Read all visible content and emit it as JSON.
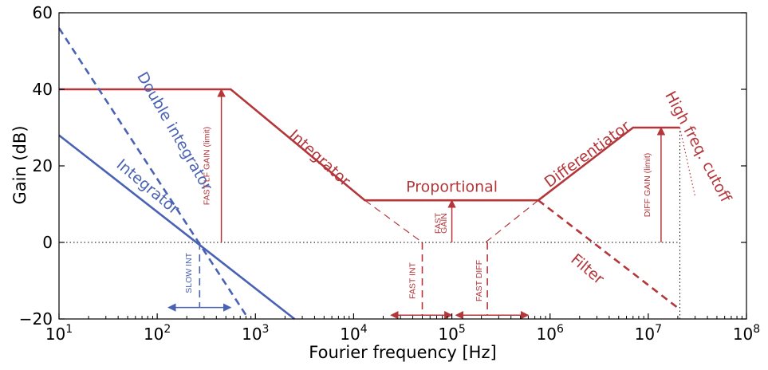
{
  "chart_data": {
    "type": "line",
    "xscale": "log",
    "xlim": [
      10,
      100000000
    ],
    "ylim": [
      -20,
      60
    ],
    "xlabel": "Fourier frequency  [Hz]",
    "ylabel": "Gain (dB)",
    "xticks": [
      {
        "value": 10,
        "base": "10",
        "exp": "1"
      },
      {
        "value": 100,
        "base": "10",
        "exp": "2"
      },
      {
        "value": 1000,
        "base": "10",
        "exp": "3"
      },
      {
        "value": 10000,
        "base": "10",
        "exp": "4"
      },
      {
        "value": 100000,
        "base": "10",
        "exp": "5"
      },
      {
        "value": 1000000,
        "base": "10",
        "exp": "6"
      },
      {
        "value": 10000000,
        "base": "10",
        "exp": "7"
      },
      {
        "value": 100000000,
        "base": "10",
        "exp": "8"
      }
    ],
    "yticks": [
      {
        "value": -20,
        "label": "−20"
      },
      {
        "value": 0,
        "label": "0"
      },
      {
        "value": 20,
        "label": "20"
      },
      {
        "value": 40,
        "label": "40"
      },
      {
        "value": 60,
        "label": "60"
      }
    ],
    "colors": {
      "blue": "#4a62b3",
      "red": "#b3363a",
      "axis": "#000000"
    },
    "series": [
      {
        "color": "red",
        "style": "solid",
        "width": 2.6,
        "points": [
          [
            10,
            40
          ],
          [
            560,
            40
          ],
          [
            13000,
            11
          ],
          [
            760000,
            11
          ],
          [
            7000000,
            30
          ],
          [
            21000000,
            30
          ]
        ]
      },
      {
        "color": "red",
        "style": "dashed",
        "width": 2.6,
        "points": [
          [
            760000,
            11
          ],
          [
            21000000,
            -17.5
          ]
        ]
      },
      {
        "color": "red",
        "style": "dotted",
        "width": 1.2,
        "points": [
          [
            21000000,
            30
          ],
          [
            30000000,
            12
          ]
        ]
      },
      {
        "color": "blue",
        "style": "solid",
        "width": 2.6,
        "points": [
          [
            10,
            28
          ],
          [
            2500,
            -20
          ]
        ]
      },
      {
        "color": "blue",
        "style": "dashed",
        "width": 2.6,
        "points": [
          [
            10,
            56
          ],
          [
            850,
            -20
          ]
        ]
      }
    ],
    "guides": [
      {
        "color": "red",
        "style": "dashed",
        "width": 1.2,
        "points": [
          [
            13000,
            11
          ],
          [
            50000,
            0
          ]
        ]
      },
      {
        "color": "red",
        "style": "dashed",
        "width": 1.2,
        "points": [
          [
            760000,
            11
          ],
          [
            220000,
            0
          ]
        ]
      },
      {
        "color": "red",
        "style": "dashed",
        "width": 1.6,
        "points": [
          [
            50000,
            0
          ],
          [
            50000,
            -19
          ]
        ]
      },
      {
        "color": "red",
        "style": "dashed",
        "width": 1.6,
        "points": [
          [
            230000,
            0
          ],
          [
            230000,
            -19
          ]
        ]
      },
      {
        "color": "blue",
        "style": "dashed",
        "width": 1.6,
        "points": [
          [
            270,
            0
          ],
          [
            270,
            -17
          ]
        ]
      },
      {
        "color": "black",
        "style": "dotted",
        "width": 1.0,
        "points": [
          [
            10,
            0
          ],
          [
            21000000,
            0
          ]
        ]
      },
      {
        "color": "black",
        "style": "dotted",
        "width": 1.0,
        "points": [
          [
            21000000,
            30
          ],
          [
            21000000,
            -20
          ]
        ]
      }
    ],
    "arrows": [
      {
        "color": "red",
        "from": [
          450,
          0
        ],
        "to": [
          450,
          40
        ]
      },
      {
        "color": "red",
        "from": [
          100000,
          0
        ],
        "to": [
          100000,
          11
        ]
      },
      {
        "color": "red",
        "from": [
          13500000,
          0
        ],
        "to": [
          13500000,
          30
        ]
      },
      {
        "color": "red",
        "from": [
          24000,
          -19
        ],
        "to": [
          100000,
          -19
        ],
        "double": true
      },
      {
        "color": "red",
        "from": [
          110000,
          -19
        ],
        "to": [
          600000,
          -19
        ],
        "double": true
      },
      {
        "color": "blue",
        "from": [
          130,
          -17
        ],
        "to": [
          560,
          -17
        ],
        "double": true
      }
    ],
    "annotations": [
      {
        "text": "Integrator",
        "x": 4500,
        "y": 22,
        "angle": 42,
        "color": "red",
        "class": "curve-label"
      },
      {
        "text": "Proportional",
        "x": 100000,
        "y": 14.5,
        "angle": 0,
        "color": "red",
        "class": "curve-label"
      },
      {
        "text": "Differentiator",
        "x": 2400000,
        "y": 23,
        "angle": -36,
        "color": "red",
        "class": "curve-label"
      },
      {
        "text": "High freq. cutoff",
        "x": 32000000,
        "y": 25,
        "angle": 62,
        "color": "red",
        "class": "curve-label"
      },
      {
        "text": "Filter",
        "x": 2400000,
        "y": -7,
        "angle": 40,
        "color": "red",
        "class": "curve-label"
      },
      {
        "text": "Double integrator",
        "x": 150,
        "y": 29,
        "angle": 60,
        "color": "blue",
        "class": "curve-label"
      },
      {
        "text": "Integrator",
        "x": 80,
        "y": 14.5,
        "angle": 40,
        "color": "blue",
        "class": "curve-label"
      },
      {
        "text": "FAST LF GAIN (limit)",
        "x": 320,
        "y": 20,
        "angle": -90,
        "color": "red",
        "class": "small-label"
      },
      {
        "text": "FAST",
        "x": 73000,
        "y": 5,
        "angle": -90,
        "color": "red",
        "class": "small-label"
      },
      {
        "text": "GAIN",
        "x": 84000,
        "y": 5,
        "angle": -90,
        "color": "red",
        "class": "small-label"
      },
      {
        "text": "DIFF GAIN (limit)",
        "x": 9800000,
        "y": 15,
        "angle": -90,
        "color": "red",
        "class": "small-label"
      },
      {
        "text": "FAST INT",
        "x": 40000,
        "y": -10,
        "angle": -90,
        "color": "red",
        "class": "small-label"
      },
      {
        "text": "FAST DIFF",
        "x": 190000,
        "y": -10,
        "angle": -90,
        "color": "red",
        "class": "small-label"
      },
      {
        "text": "SLOW INT",
        "x": 210,
        "y": -8,
        "angle": -90,
        "color": "blue",
        "class": "small-label"
      }
    ]
  }
}
